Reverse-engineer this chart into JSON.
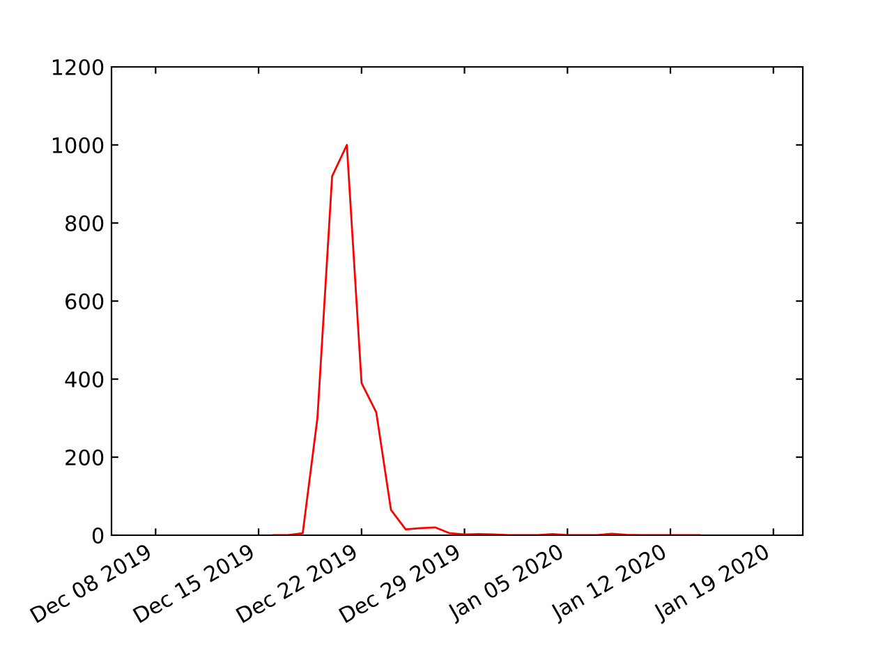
{
  "chart_data": {
    "type": "line",
    "x": [
      "2019-12-16",
      "2019-12-17",
      "2019-12-18",
      "2019-12-19",
      "2019-12-20",
      "2019-12-21",
      "2019-12-22",
      "2019-12-23",
      "2019-12-24",
      "2019-12-25",
      "2019-12-26",
      "2019-12-27",
      "2019-12-28",
      "2019-12-29",
      "2019-12-30",
      "2019-12-31",
      "2020-01-01",
      "2020-01-02",
      "2020-01-03",
      "2020-01-04",
      "2020-01-05",
      "2020-01-06",
      "2020-01-07",
      "2020-01-08",
      "2020-01-09",
      "2020-01-10",
      "2020-01-11",
      "2020-01-12",
      "2020-01-13",
      "2020-01-14"
    ],
    "series": [
      {
        "color": "#ff0000",
        "values": [
          0,
          0,
          5,
          300,
          920,
          1000,
          390,
          315,
          65,
          15,
          18,
          20,
          5,
          2,
          3,
          2,
          0,
          0,
          0,
          3,
          0,
          0,
          0,
          4,
          1,
          0,
          0,
          0,
          0,
          0
        ]
      }
    ],
    "xlim": [
      "2019-12-05",
      "2020-01-21"
    ],
    "xticks": [
      {
        "value": "2019-12-08",
        "label": "Dec 08 2019"
      },
      {
        "value": "2019-12-15",
        "label": "Dec 15 2019"
      },
      {
        "value": "2019-12-22",
        "label": "Dec 22 2019"
      },
      {
        "value": "2019-12-29",
        "label": "Dec 29 2019"
      },
      {
        "value": "2020-01-05",
        "label": "Jan 05 2020"
      },
      {
        "value": "2020-01-12",
        "label": "Jan 12 2020"
      },
      {
        "value": "2020-01-19",
        "label": "Jan 19 2020"
      }
    ],
    "ylim": [
      0,
      1200
    ],
    "yticks": [
      0,
      200,
      400,
      600,
      800,
      1000,
      1200
    ],
    "grid": false,
    "legend": false,
    "marker": "none",
    "line_style": "solid"
  }
}
